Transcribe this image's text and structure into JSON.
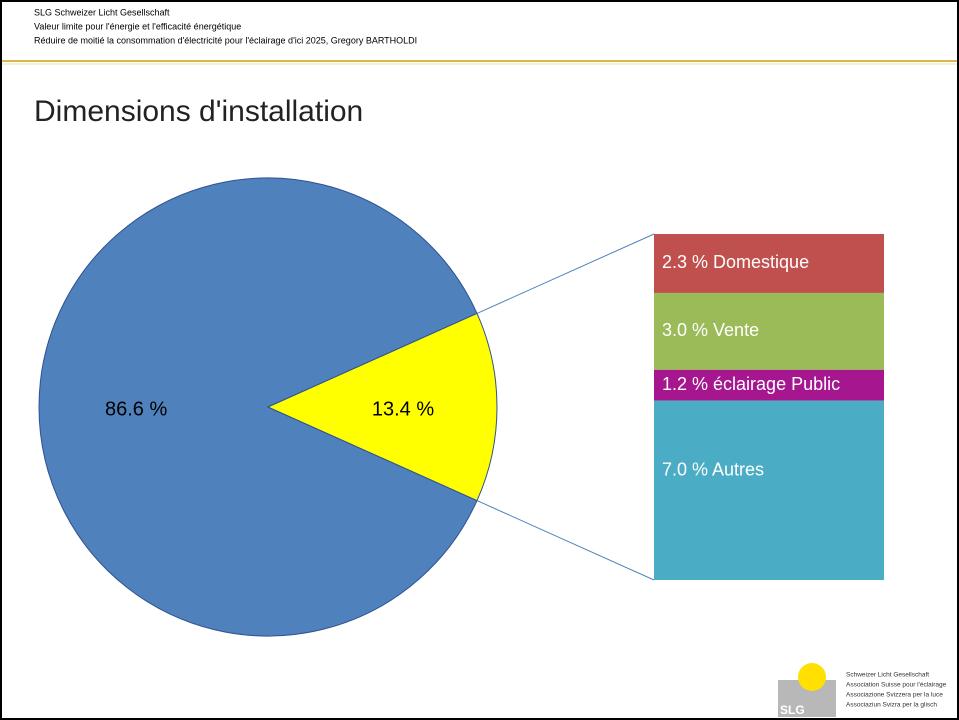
{
  "header": {
    "lines": [
      "SLG Schweizer Licht Gesellschaft",
      "Valeur limite pour l'énergie et l'efficacité énergétique",
      "Réduire de moitié la consommation d'électricité pour l'éclairage d'ici 2025, Gregory BARTHOLDI"
    ]
  },
  "chart_data": {
    "type": "pie-of-bar",
    "title": "Dimensions d'installation",
    "pie": {
      "values": [
        86.6,
        13.4
      ],
      "value_labels": [
        "86.6 %",
        "13.4 %"
      ],
      "colors": [
        "#4f81bd",
        "#ffff00"
      ]
    },
    "breakdown": {
      "values": [
        2.3,
        3.0,
        1.2,
        7.0
      ],
      "value_labels": [
        "2.3 % Domestique",
        "3.0 % Vente",
        "1.2 % éclairage Public",
        "7.0 % Autres"
      ],
      "colors": [
        "#c0504d",
        "#9bbb59",
        "#a5168f",
        "#4bacc6"
      ]
    }
  },
  "logo": {
    "mark": "SLG",
    "lines": [
      "Schweizer Licht Gesellschaft",
      "Association Suisse pour l'éclairage",
      "Associazione Svizzera per la luce",
      "Associaziun Svizra per la glisch"
    ]
  }
}
